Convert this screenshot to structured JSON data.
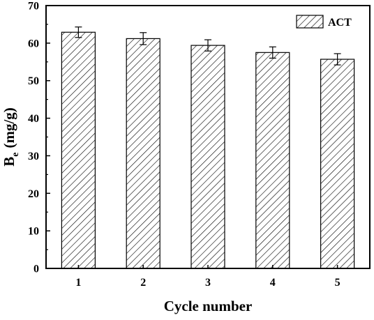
{
  "chart_data": {
    "type": "bar",
    "title": "",
    "xlabel": "Cycle number",
    "ylabel": "B",
    "ylabel_sub": "e",
    "ylabel_unit": "(mg/g)",
    "categories": [
      "1",
      "2",
      "3",
      "4",
      "5"
    ],
    "series": [
      {
        "name": "ACT",
        "values": [
          62.9,
          61.2,
          59.4,
          57.5,
          55.7
        ],
        "errors": [
          1.4,
          1.6,
          1.5,
          1.5,
          1.5
        ],
        "fill": "hatched",
        "color": "#000000"
      }
    ],
    "ylim": [
      0,
      70
    ],
    "yticks": [
      0,
      10,
      20,
      30,
      40,
      50,
      60,
      70
    ],
    "legend_position": "top-right",
    "grid": false
  }
}
